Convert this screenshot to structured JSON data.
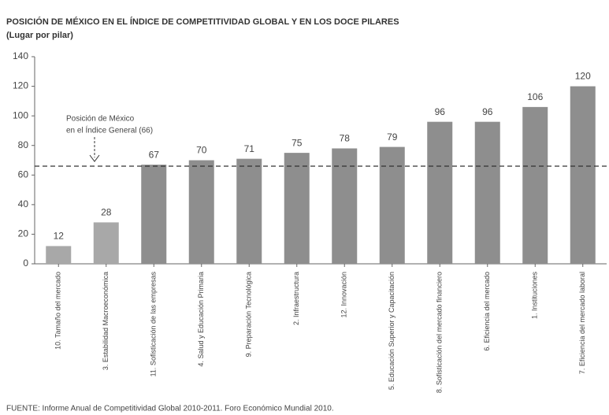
{
  "chart_data": {
    "type": "bar",
    "title": "POSICIÓN DE MÉXICO EN EL ÍNDICE DE COMPETITIVIDAD GLOBAL Y EN LOS DOCE PILARES",
    "subtitle": "(Lugar por pilar)",
    "categories": [
      "10. Tamaño del mercado",
      "3. Estabilidad Macroeconómica",
      "11. Sofisticación de las empresas",
      "4. Salud y Educación Primaria",
      "9. Preparación Tecnológica",
      "2. Infraestructura",
      "12. Innovación",
      "5. Educación Superior y Capacitación",
      "8. Sofisticación del mercado financiero",
      "6. Eficiencia del mercado",
      "1. Instituciones",
      "7. Eficiencia del mercado laboral"
    ],
    "values": [
      12,
      28,
      67,
      70,
      71,
      75,
      78,
      79,
      96,
      96,
      106,
      120
    ],
    "colors": [
      "#a8a8a8",
      "#a8a8a8",
      "#8e8e8e",
      "#8e8e8e",
      "#8e8e8e",
      "#8e8e8e",
      "#8e8e8e",
      "#8e8e8e",
      "#8e8e8e",
      "#8e8e8e",
      "#8e8e8e",
      "#8e8e8e"
    ],
    "ylim": [
      0,
      140
    ],
    "yticks": [
      0,
      20,
      40,
      60,
      80,
      100,
      120,
      140
    ],
    "reference_line": {
      "value": 66,
      "label": [
        "Posición de México",
        "en el  Índice General (66)"
      ]
    },
    "source": "FUENTE: Informe Anual de Competitividad Global 2010-2011. Foro Económico Mundial 2010."
  }
}
